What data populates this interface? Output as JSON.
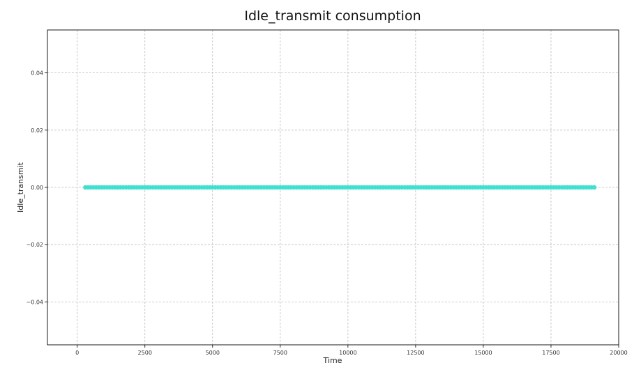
{
  "chart_data": {
    "type": "scatter",
    "title": "Idle_transmit consumption",
    "xlabel": "Time",
    "ylabel": "Idle_transmit",
    "xlim": [
      -1100,
      20000
    ],
    "ylim": [
      -0.055,
      0.055
    ],
    "xticks": [
      0,
      2500,
      5000,
      7500,
      10000,
      12500,
      15000,
      17500,
      20000
    ],
    "xtick_labels": [
      "0",
      "2500",
      "5000",
      "7500",
      "10000",
      "12500",
      "15000",
      "17500",
      "20000"
    ],
    "yticks": [
      -0.04,
      -0.02,
      0.0,
      0.02,
      0.04
    ],
    "ytick_labels": [
      "−0.04",
      "−0.02",
      "0.00",
      "0.02",
      "0.04"
    ],
    "grid": true,
    "series": [
      {
        "color": "#40e0d0",
        "x_start": 300,
        "x_end": 19100,
        "x_step": 100,
        "y_constant": 0.0
      }
    ]
  }
}
